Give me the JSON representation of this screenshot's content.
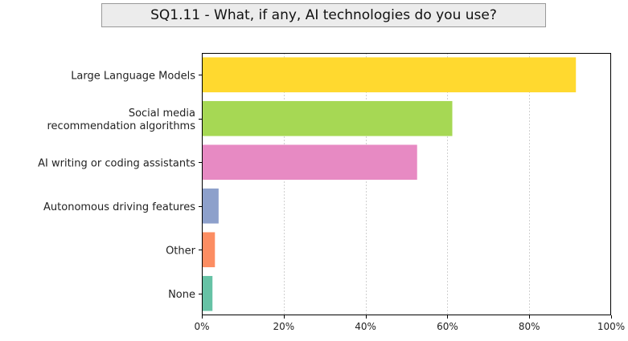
{
  "chart_data": {
    "type": "bar",
    "orientation": "horizontal",
    "title": "SQ1.11 - What, if any, AI technologies do you use?",
    "xlabel": "",
    "ylabel": "",
    "xlim": [
      0,
      100
    ],
    "x_ticks": [
      0,
      20,
      40,
      60,
      80,
      100
    ],
    "x_tick_labels": [
      "0%",
      "20%",
      "40%",
      "60%",
      "80%",
      "100%"
    ],
    "grid": "vertical",
    "legend": "none",
    "categories": [
      [
        "Large Language Models"
      ],
      [
        "Social media",
        "recommendation algorithms"
      ],
      [
        "AI writing or coding assistants"
      ],
      [
        "Autonomous driving features"
      ],
      [
        "Other"
      ],
      [
        "None"
      ]
    ],
    "values": [
      91.4,
      61.2,
      52.6,
      4.1,
      3.2,
      2.6
    ],
    "colors": [
      "#ffd92f",
      "#a6d854",
      "#e78ac3",
      "#8da0cb",
      "#fc8d62",
      "#66c2a5"
    ]
  }
}
